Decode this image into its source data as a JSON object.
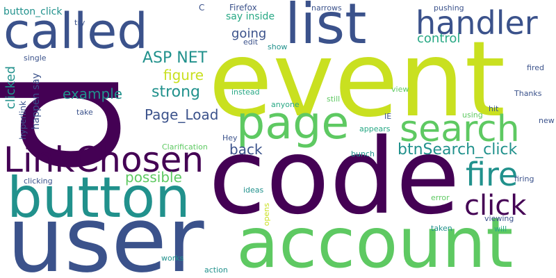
{
  "colors": {
    "background": "#ffffff",
    "palette": [
      "#440154",
      "#3b528b",
      "#21918c",
      "#27a884",
      "#5ec962",
      "#c9e020",
      "#fde725"
    ]
  },
  "words": [
    "p",
    "event",
    "code",
    "user",
    "account",
    "called",
    "list",
    "button",
    "page",
    "search",
    "LinkChosen",
    "handler",
    "fire",
    "click",
    "btnSearch_click",
    "ASP NET",
    "strong",
    "example",
    "figure",
    "Page_Load",
    "back",
    "possible",
    "going",
    "control",
    "say inside",
    "clicked",
    "happen say",
    "hyperlink",
    "button_click",
    "C",
    "Firefox",
    "narrows",
    "pushing",
    "try",
    "edit",
    "show",
    "single",
    "instead",
    "anyone",
    "still",
    "view",
    "Thanks",
    "fired",
    "IE",
    "appears",
    "hit",
    "using",
    "new",
    "take",
    "Clarification",
    "Hey",
    "bunch",
    "firing",
    "clicking",
    "ideas",
    "error",
    "opens",
    "viewing",
    "taken",
    "will",
    "works",
    "action"
  ]
}
